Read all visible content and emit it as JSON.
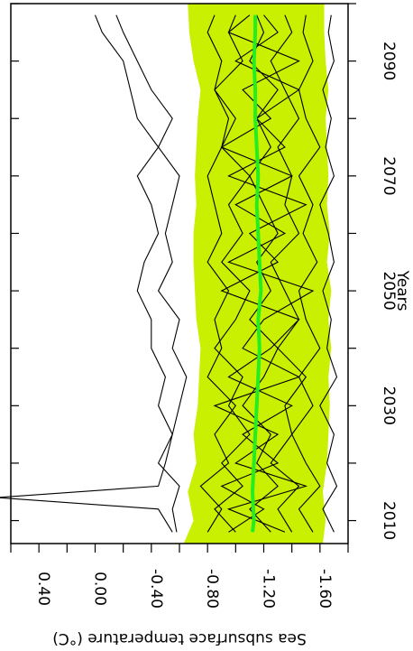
{
  "chart_data": {
    "type": "line",
    "orientation": "rotated-180",
    "xlabel": "Years",
    "ylabel": "Sea subsurface temperature (°C)",
    "x_ticks": [
      "2010",
      "2030",
      "2050",
      "2070",
      "2090"
    ],
    "y_ticks": [
      "0.40",
      "0.00",
      "-0.40",
      "-0.80",
      "-1.20",
      "-1.60"
    ],
    "xlim": [
      2006,
      2100
    ],
    "ylim": [
      -1.8,
      0.6
    ],
    "band_color": "#c8f000",
    "mean_color": "#22ee22",
    "line_color": "#000000",
    "ensemble_mean": {
      "x": [
        2008,
        2010,
        2015,
        2020,
        2025,
        2030,
        2035,
        2040,
        2045,
        2050,
        2055,
        2060,
        2065,
        2070,
        2075,
        2080,
        2085,
        2090,
        2095,
        2098
      ],
      "y": [
        -1.12,
        -1.13,
        -1.12,
        -1.13,
        -1.14,
        -1.15,
        -1.16,
        -1.17,
        -1.16,
        -1.18,
        -1.17,
        -1.16,
        -1.15,
        -1.16,
        -1.15,
        -1.14,
        -1.14,
        -1.13,
        -1.14,
        -1.14
      ]
    },
    "spread_band": {
      "x": [
        2006,
        2010,
        2015,
        2020,
        2025,
        2030,
        2035,
        2040,
        2045,
        2050,
        2055,
        2060,
        2065,
        2070,
        2075,
        2080,
        2085,
        2090,
        2095,
        2100
      ],
      "upper": [
        -0.63,
        -0.7,
        -0.66,
        -0.72,
        -0.7,
        -0.73,
        -0.74,
        -0.75,
        -0.72,
        -0.71,
        -0.7,
        -0.7,
        -0.72,
        -0.71,
        -0.72,
        -0.73,
        -0.75,
        -0.7,
        -0.67,
        -0.66
      ],
      "lower": [
        -1.62,
        -1.64,
        -1.62,
        -1.65,
        -1.66,
        -1.67,
        -1.66,
        -1.68,
        -1.66,
        -1.68,
        -1.65,
        -1.67,
        -1.65,
        -1.66,
        -1.65,
        -1.64,
        -1.66,
        -1.64,
        -1.63,
        -1.63
      ]
    },
    "series": [
      {
        "x": [
          2008,
          2010,
          2012,
          2014,
          2016,
          2020,
          2025,
          2030,
          2035,
          2040,
          2045,
          2050,
          2055,
          2060,
          2065,
          2070,
          2075,
          2080,
          2085,
          2090,
          2095,
          2098
        ],
        "y": [
          -0.55,
          -0.5,
          -0.45,
          0.7,
          -0.45,
          -0.5,
          -0.55,
          -0.45,
          -0.5,
          -0.4,
          -0.4,
          -0.3,
          -0.35,
          -0.45,
          -0.4,
          -0.3,
          -0.45,
          -0.3,
          -0.25,
          -0.2,
          -0.05,
          0.0
        ]
      },
      {
        "x": [
          2008,
          2012,
          2016,
          2020,
          2025,
          2030,
          2035,
          2040,
          2045,
          2050,
          2055,
          2060,
          2065,
          2070,
          2075,
          2080,
          2085,
          2090,
          2095,
          2098
        ],
        "y": [
          -0.58,
          -0.55,
          -0.6,
          -0.45,
          -0.55,
          -0.6,
          -0.65,
          -0.55,
          -0.6,
          -0.45,
          -0.55,
          -0.5,
          -0.55,
          -0.6,
          -0.45,
          -0.55,
          -0.4,
          -0.3,
          -0.2,
          -0.15
        ]
      },
      {
        "x": [
          2008,
          2012,
          2016,
          2020,
          2025,
          2030,
          2035,
          2040,
          2045,
          2050,
          2055,
          2060,
          2065,
          2070,
          2075,
          2080,
          2085,
          2090,
          2095,
          2098
        ],
        "y": [
          -0.8,
          -0.9,
          -0.75,
          -0.95,
          -0.85,
          -1.0,
          -0.8,
          -0.9,
          -0.85,
          -0.95,
          -0.8,
          -0.9,
          -0.85,
          -0.8,
          -0.9,
          -0.95,
          -0.85,
          -0.9,
          -0.8,
          -0.85
        ]
      },
      {
        "x": [
          2008,
          2012,
          2016,
          2020,
          2025,
          2030,
          2035,
          2040,
          2045,
          2050,
          2055,
          2060,
          2065,
          2070,
          2075,
          2080,
          2085,
          2090,
          2095,
          2098
        ],
        "y": [
          -1.0,
          -0.85,
          -1.05,
          -0.9,
          -1.1,
          -0.95,
          -1.05,
          -0.85,
          -1.0,
          -1.1,
          -0.9,
          -1.05,
          -0.95,
          -1.1,
          -0.9,
          -1.0,
          -0.85,
          -1.05,
          -0.95,
          -1.0
        ]
      },
      {
        "x": [
          2008,
          2012,
          2016,
          2020,
          2025,
          2030,
          2035,
          2040,
          2045,
          2050,
          2055,
          2060,
          2065,
          2070,
          2075,
          2080,
          2085,
          2090,
          2095,
          2098
        ],
        "y": [
          -1.25,
          -1.1,
          -1.3,
          -1.15,
          -1.25,
          -1.05,
          -1.2,
          -1.3,
          -1.1,
          -1.25,
          -1.15,
          -1.3,
          -1.2,
          -1.1,
          -1.25,
          -1.15,
          -1.3,
          -1.1,
          -1.2,
          -1.15
        ]
      },
      {
        "x": [
          2008,
          2012,
          2016,
          2020,
          2025,
          2030,
          2035,
          2040,
          2045,
          2050,
          2055,
          2060,
          2065,
          2070,
          2075,
          2080,
          2085,
          2090,
          2095,
          2098
        ],
        "y": [
          -1.4,
          -1.3,
          -1.45,
          -1.25,
          -1.4,
          -1.35,
          -1.5,
          -1.3,
          -1.45,
          -1.35,
          -1.25,
          -1.45,
          -1.35,
          -1.4,
          -1.3,
          -1.45,
          -1.35,
          -1.25,
          -1.4,
          -1.35
        ]
      },
      {
        "x": [
          2008,
          2012,
          2016,
          2020,
          2025,
          2030,
          2035,
          2040,
          2045,
          2050,
          2055,
          2060,
          2065,
          2070,
          2075,
          2080,
          2085,
          2090,
          2095,
          2098
        ],
        "y": [
          -1.55,
          -1.45,
          -1.6,
          -1.5,
          -1.4,
          -1.55,
          -1.45,
          -1.6,
          -1.5,
          -1.45,
          -1.58,
          -1.48,
          -1.55,
          -1.45,
          -1.6,
          -1.5,
          -1.45,
          -1.55,
          -1.48,
          -1.5
        ]
      },
      {
        "x": [
          2008,
          2012,
          2016,
          2020,
          2025,
          2030,
          2035,
          2040,
          2045,
          2050,
          2055,
          2060,
          2065,
          2070,
          2075,
          2080,
          2085,
          2090,
          2095,
          2098
        ],
        "y": [
          -1.7,
          -1.62,
          -1.72,
          -1.65,
          -1.7,
          -1.6,
          -1.72,
          -1.65,
          -1.68,
          -1.62,
          -1.7,
          -1.66,
          -1.6,
          -1.7,
          -1.64,
          -1.68,
          -1.62,
          -1.7,
          -1.66,
          -1.68
        ]
      },
      {
        "x": [
          2008,
          2012,
          2016,
          2020,
          2025,
          2030,
          2035,
          2040,
          2045,
          2050,
          2055,
          2060,
          2065,
          2070,
          2075,
          2080,
          2085,
          2090,
          2095,
          2098
        ],
        "y": [
          -0.95,
          -1.2,
          -0.9,
          -1.3,
          -1.05,
          -1.4,
          -0.95,
          -1.25,
          -1.45,
          -0.9,
          -1.3,
          -1.1,
          -1.5,
          -0.95,
          -1.35,
          -1.15,
          -1.45,
          -1.0,
          -1.3,
          -1.2
        ]
      },
      {
        "x": [
          2008,
          2012,
          2016,
          2020,
          2025,
          2030,
          2035,
          2040,
          2045,
          2050,
          2055,
          2060,
          2065,
          2070,
          2075,
          2080,
          2085,
          2090,
          2095,
          2098
        ],
        "y": [
          -1.35,
          -0.95,
          -1.5,
          -1.0,
          -1.3,
          -0.85,
          -1.45,
          -1.05,
          -1.2,
          -1.55,
          -0.95,
          -1.35,
          -1.0,
          -1.4,
          -0.9,
          -1.25,
          -1.05,
          -1.45,
          -0.95,
          -1.1
        ]
      }
    ]
  }
}
